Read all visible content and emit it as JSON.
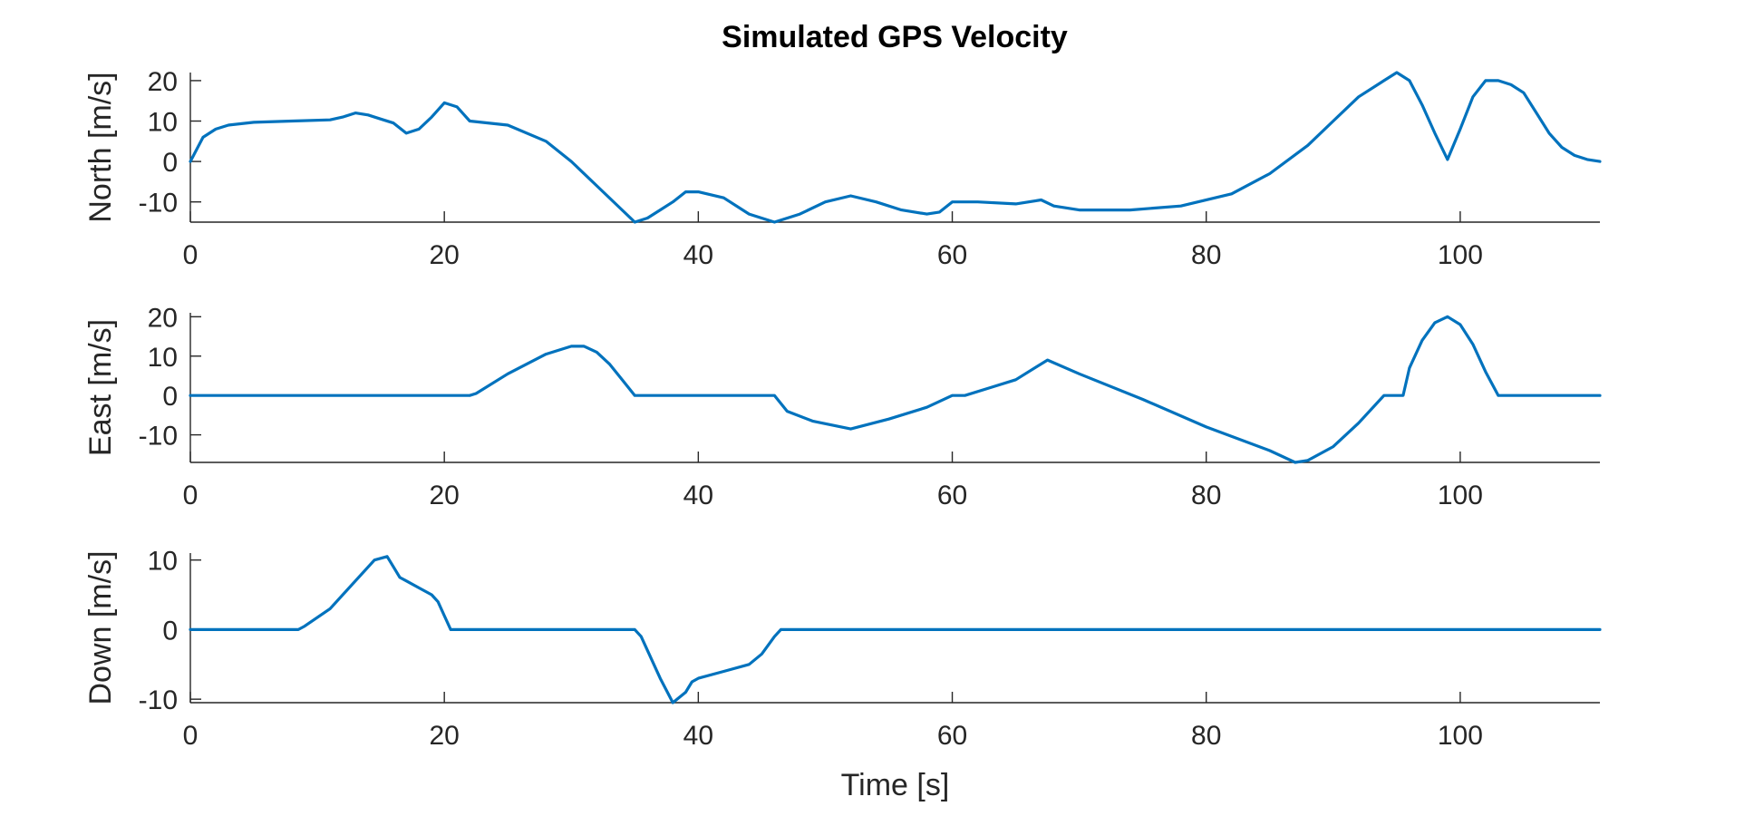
{
  "figure": {
    "title": "Simulated GPS Velocity"
  },
  "chart_data": [
    {
      "type": "line",
      "title": "Simulated GPS Velocity",
      "xlabel": "",
      "ylabel": "North [m/s]",
      "xlim": [
        0,
        111
      ],
      "ylim": [
        -15,
        22
      ],
      "xticks": [
        0,
        20,
        40,
        60,
        80,
        100
      ],
      "yticks": [
        -10,
        0,
        10,
        20
      ],
      "xtick_labels": [
        "0",
        "20",
        "40",
        "60",
        "80",
        "100"
      ],
      "ytick_labels": [
        "-10",
        "0",
        "10",
        "20"
      ],
      "grid": false,
      "color": "#0072BD",
      "x": [
        0,
        1,
        2,
        3,
        5,
        8,
        11,
        12,
        13,
        14,
        15,
        16,
        17,
        18,
        19,
        20,
        21,
        22,
        25,
        28,
        30,
        32,
        34,
        35,
        36,
        37,
        38,
        39,
        40,
        42,
        44,
        46,
        48,
        50,
        52,
        54,
        56,
        58,
        59,
        60,
        62,
        65,
        67,
        68,
        70,
        74,
        78,
        82,
        85,
        88,
        90,
        92,
        94,
        95,
        96,
        97,
        98,
        99,
        100,
        101,
        102,
        103,
        104,
        105,
        106,
        107,
        108,
        109,
        110,
        111
      ],
      "y": [
        0,
        6,
        8,
        9,
        9.7,
        10,
        10.3,
        11,
        12,
        11.5,
        10.5,
        9.5,
        7,
        8,
        11,
        14.5,
        13.5,
        10,
        9,
        5,
        0,
        -6,
        -12,
        -15,
        -14,
        -12,
        -10,
        -7.5,
        -7.5,
        -9,
        -13,
        -15,
        -13,
        -10,
        -8.5,
        -10,
        -12,
        -13,
        -12.5,
        -10,
        -10,
        -10.5,
        -9.5,
        -11,
        -12,
        -12,
        -11,
        -8,
        -3,
        4,
        10,
        16,
        20,
        22,
        20,
        14,
        7,
        0.5,
        8,
        16,
        20,
        20,
        19,
        17,
        12,
        7,
        3.5,
        1.5,
        0.5,
        0
      ]
    },
    {
      "type": "line",
      "xlabel": "",
      "ylabel": "East [m/s]",
      "xlim": [
        0,
        111
      ],
      "ylim": [
        -17,
        21
      ],
      "xticks": [
        0,
        20,
        40,
        60,
        80,
        100
      ],
      "yticks": [
        -10,
        0,
        10,
        20
      ],
      "xtick_labels": [
        "0",
        "20",
        "40",
        "60",
        "80",
        "100"
      ],
      "ytick_labels": [
        "-10",
        "0",
        "10",
        "20"
      ],
      "grid": false,
      "color": "#0072BD",
      "x": [
        0,
        22,
        22.5,
        25,
        28,
        30,
        31,
        32,
        33,
        34,
        35,
        36,
        46,
        47,
        49,
        52,
        55,
        58,
        60,
        61,
        63,
        65,
        67.5,
        70,
        75,
        80,
        85,
        87,
        88,
        90,
        92,
        94,
        95,
        95.5,
        96,
        97,
        98,
        99,
        100,
        101,
        102,
        103,
        111
      ],
      "y": [
        0,
        0,
        0.5,
        5.5,
        10.5,
        12.5,
        12.5,
        11,
        8,
        4,
        0,
        0,
        0,
        -4,
        -6.5,
        -8.5,
        -6,
        -3,
        0,
        0,
        2,
        4,
        9,
        5.5,
        -1,
        -8,
        -14,
        -17,
        -16.5,
        -13,
        -7,
        0,
        0,
        0,
        7,
        14,
        18.5,
        20,
        18,
        13,
        6,
        0,
        0
      ]
    },
    {
      "type": "line",
      "xlabel": "Time [s]",
      "ylabel": "Down [m/s]",
      "xlim": [
        0,
        111
      ],
      "ylim": [
        -10.5,
        11
      ],
      "xticks": [
        0,
        20,
        40,
        60,
        80,
        100
      ],
      "yticks": [
        -10,
        0,
        10
      ],
      "xtick_labels": [
        "0",
        "20",
        "40",
        "60",
        "80",
        "100"
      ],
      "ytick_labels": [
        "-10",
        "0",
        "10"
      ],
      "grid": false,
      "color": "#0072BD",
      "x": [
        0,
        8.5,
        9,
        11,
        13,
        14.5,
        15.5,
        16,
        16.5,
        17,
        18,
        19,
        19.5,
        20,
        20.5,
        35,
        35.5,
        37,
        38,
        39,
        39.5,
        40,
        42,
        44,
        45,
        46,
        46.5,
        111
      ],
      "y": [
        0,
        0,
        0.5,
        3,
        7,
        10,
        10.5,
        9,
        7.5,
        7,
        6,
        5,
        4,
        2,
        0,
        0,
        -1,
        -7,
        -10.5,
        -9,
        -7.5,
        -7,
        -6,
        -5,
        -3.5,
        -1,
        0,
        0
      ]
    }
  ]
}
